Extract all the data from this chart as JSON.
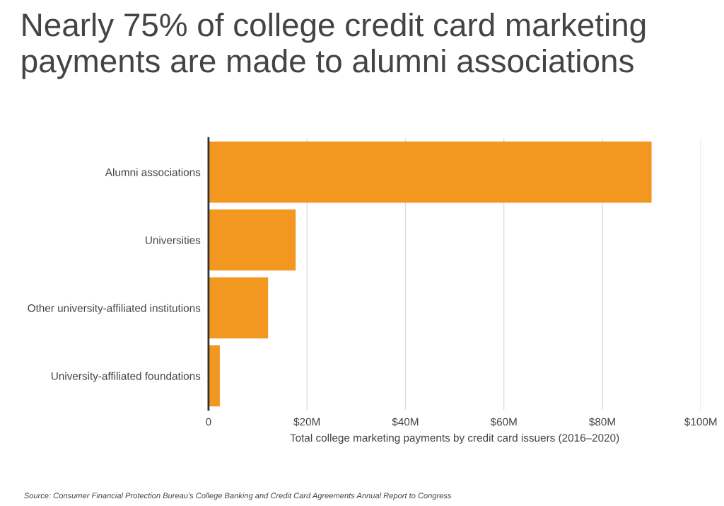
{
  "chart_data": {
    "type": "bar",
    "orientation": "horizontal",
    "title": "Nearly 75% of college credit card marketing payments are made to alumni associations",
    "categories": [
      "Alumni associations",
      "Universities",
      "Other university-affiliated institutions",
      "University-affiliated foundations"
    ],
    "values": [
      90,
      17.7,
      12.1,
      2.3
    ],
    "color": "#f2971f",
    "xlim": [
      0,
      100
    ],
    "xticks": [
      0,
      {
        "value": 20,
        "label": "$20M"
      },
      {
        "value": 40,
        "label": "$40M"
      },
      {
        "value": 60,
        "label": "$60M"
      },
      {
        "value": 80,
        "label": "$80M"
      },
      {
        "value": 100,
        "label": "$100M"
      }
    ],
    "xlabel": "Total college marketing payments by credit card issuers (2016–2020)",
    "grid": "x",
    "annotations": [
      "Source: Consumer Financial Protection Bureau's College Banking and Credit Card Agreements Annual Report to Congress"
    ]
  }
}
